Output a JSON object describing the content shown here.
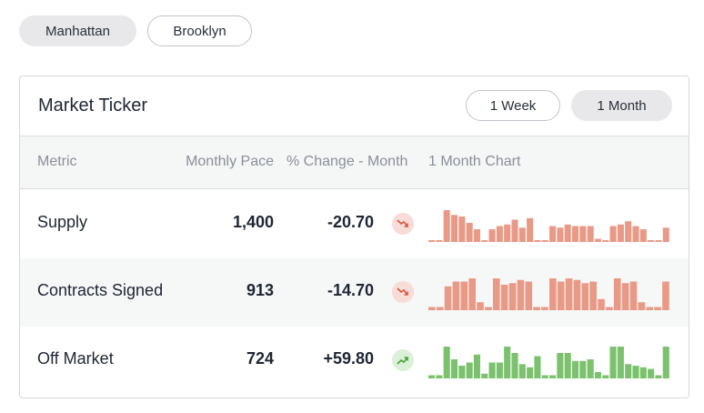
{
  "boroughs": {
    "manhattan": "Manhattan",
    "brooklyn": "Brooklyn"
  },
  "ticker": {
    "title": "Market Ticker",
    "ranges": {
      "week": "1 Week",
      "month": "1 Month"
    },
    "columns": {
      "metric": "Metric",
      "pace": "Monthly Pace",
      "change": "% Change - Month",
      "chart": "1 Month Chart"
    },
    "colors": {
      "down": "#e99a87",
      "up": "#7cc26e",
      "down_icon": "#d9553f",
      "up_icon": "#45a336"
    },
    "rows": [
      {
        "metric": "Supply",
        "pace": "1,400",
        "change": "-20.70",
        "trend": "down",
        "trend_icon": "trending-down-icon",
        "bars": [
          0.05,
          0.05,
          1.0,
          0.85,
          0.8,
          0.6,
          0.4,
          0.05,
          0.4,
          0.5,
          0.55,
          0.7,
          0.45,
          0.75,
          0.05,
          0.05,
          0.5,
          0.45,
          0.55,
          0.5,
          0.5,
          0.5,
          0.1,
          0.05,
          0.5,
          0.55,
          0.65,
          0.5,
          0.4,
          0.05,
          0.05,
          0.45
        ]
      },
      {
        "metric": "Contracts Signed",
        "pace": "913",
        "change": "-14.70",
        "trend": "down",
        "trend_icon": "trending-down-icon",
        "bars": [
          0.1,
          0.1,
          0.75,
          0.9,
          0.9,
          1.0,
          0.25,
          0.1,
          1.0,
          0.8,
          0.85,
          0.95,
          0.9,
          0.1,
          0.1,
          1.0,
          0.9,
          1.0,
          0.95,
          0.85,
          0.9,
          0.35,
          0.1,
          1.0,
          0.85,
          0.9,
          0.25,
          0.1,
          0.1,
          0.9
        ]
      },
      {
        "metric": "Off Market",
        "pace": "724",
        "change": "+59.80",
        "trend": "up",
        "trend_icon": "trending-up-icon",
        "bars": [
          0.1,
          0.1,
          1.0,
          0.6,
          0.4,
          0.5,
          0.75,
          0.15,
          0.5,
          0.5,
          1.0,
          0.8,
          0.45,
          0.35,
          0.7,
          0.1,
          0.1,
          0.8,
          0.8,
          0.55,
          0.55,
          0.6,
          0.2,
          0.1,
          1.0,
          1.0,
          0.45,
          0.4,
          0.35,
          0.3,
          0.1,
          1.0
        ]
      }
    ]
  }
}
